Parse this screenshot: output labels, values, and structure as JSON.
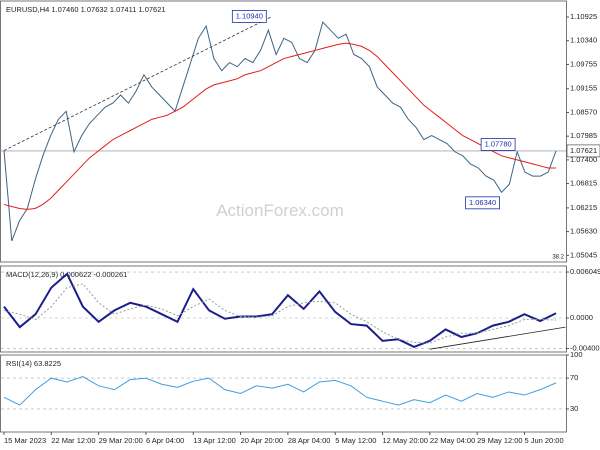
{
  "chart_data": [
    {
      "type": "line",
      "title": "EURUSD,H4  1.07460 1.07632 1.07411 1.07621",
      "watermark": "ActionForex.com",
      "note": "38.2",
      "current_price": 1.07621,
      "series": [
        {
          "name": "EURUSD",
          "color": "#3d6483",
          "values": [
            1.0763,
            1.054,
            1.059,
            1.062,
            1.069,
            1.075,
            1.08,
            1.084,
            1.086,
            1.076,
            1.08,
            1.083,
            1.085,
            1.087,
            1.088,
            1.09,
            1.088,
            1.091,
            1.095,
            1.092,
            1.09,
            1.088,
            1.086,
            1.092,
            1.098,
            1.104,
            1.107,
            1.099,
            1.096,
            1.098,
            1.097,
            1.099,
            1.098,
            1.101,
            1.106,
            1.1,
            1.104,
            1.103,
            1.099,
            1.098,
            1.101,
            1.108,
            1.106,
            1.104,
            1.105,
            1.1,
            1.099,
            1.097,
            1.092,
            1.09,
            1.088,
            1.087,
            1.084,
            1.082,
            1.079,
            1.08,
            1.079,
            1.078,
            1.076,
            1.075,
            1.073,
            1.072,
            1.07,
            1.069,
            1.066,
            1.068,
            1.076,
            1.071,
            1.07,
            1.07,
            1.071,
            1.0762
          ]
        },
        {
          "name": "MA",
          "color": "#e31d1d",
          "values": [
            1.063,
            1.0625,
            1.062,
            1.0618,
            1.062,
            1.063,
            1.0645,
            1.0665,
            1.0685,
            1.0705,
            1.0725,
            1.0745,
            1.076,
            1.0775,
            1.079,
            1.08,
            1.081,
            1.082,
            1.083,
            1.084,
            1.0845,
            1.085,
            1.086,
            1.087,
            1.0885,
            1.09,
            1.0915,
            1.0925,
            1.093,
            1.0935,
            1.094,
            1.095,
            1.0955,
            1.096,
            1.097,
            1.098,
            1.099,
            1.0995,
            1.1,
            1.1005,
            1.101,
            1.1015,
            1.102,
            1.1025,
            1.1028,
            1.1025,
            1.102,
            1.101,
            1.0995,
            1.0975,
            1.0955,
            1.0935,
            1.0915,
            1.0895,
            1.0875,
            1.086,
            1.0845,
            1.083,
            1.0815,
            1.08,
            1.079,
            1.078,
            1.077,
            1.076,
            1.075,
            1.0745,
            1.074,
            1.0735,
            1.073,
            1.0725,
            1.072,
            1.072
          ]
        }
      ],
      "annotations": [
        {
          "x": 34,
          "value": 1.1094,
          "label": "1.10940"
        },
        {
          "x": 66,
          "value": 1.0778,
          "label": "1.07780"
        },
        {
          "x": 64,
          "value": 1.0634,
          "label": "1.06340"
        }
      ],
      "trend_lines": [
        {
          "x": [
            0,
            34.5
          ],
          "values": [
            1.0763,
            1.1094
          ]
        }
      ],
      "ylim": [
        1.0488,
        1.1132
      ],
      "yticks": [
        1.10925,
        {
          "value": 1.1034,
          "label": "1.10340"
        },
        1.09755,
        1.09155,
        {
          "value": 1.0857,
          "label": "1.08570"
        },
        1.07985,
        {
          "value": 1.074,
          "label": "1.07400"
        },
        1.06815,
        1.06215,
        {
          "value": 1.0563,
          "label": "1.05630"
        },
        1.05045
      ]
    },
    {
      "type": "line",
      "title": "MACD(12,26,9) 0.000622 -0.000261",
      "series": [
        {
          "name": "MACD",
          "color": "#1b1f8a",
          "values": [
            0.0015,
            -0.0012,
            0.0005,
            0.004,
            0.0058,
            0.0015,
            -0.0005,
            0.001,
            0.002,
            0.0015,
            0.0005,
            -0.0005,
            0.0038,
            0.001,
            -0.0001,
            0.0002,
            0.0002,
            0.0005,
            0.003,
            0.0012,
            0.0035,
            0.0008,
            -0.0008,
            -0.001,
            -0.003,
            -0.0028,
            -0.0038,
            -0.003,
            -0.0015,
            -0.0025,
            -0.002,
            -0.001,
            -0.0005,
            0.0005,
            -0.0004,
            0.000622
          ]
        },
        {
          "name": "Signal",
          "color": "#9a9a9a",
          "values": [
            0.001,
            0.0005,
            -0.0002,
            0.0015,
            0.004,
            0.0045,
            0.002,
            0.0005,
            0.0012,
            0.0017,
            0.0012,
            0.0003,
            0.0015,
            0.0025,
            0.001,
            0.0002,
            0.0001,
            0.0003,
            0.0015,
            0.002,
            0.0022,
            0.002,
            0.0005,
            -0.0005,
            -0.0018,
            -0.0028,
            -0.0032,
            -0.0033,
            -0.0025,
            -0.002,
            -0.002,
            -0.0015,
            -0.001,
            -0.0002,
            -0.0002,
            -0.000261
          ]
        }
      ],
      "trend_lines": [
        {
          "x": [
            27,
            35.6
          ],
          "values": [
            -0.0041,
            -0.0012
          ]
        }
      ],
      "ylim": [
        -0.00447,
        0.00684
      ],
      "yticks": [
        0.006049,
        {
          "value": 0,
          "label": "0.0000"
        },
        -0.004005
      ]
    },
    {
      "type": "line",
      "title": "RSI(14) 63.8225",
      "series": [
        {
          "name": "RSI",
          "color": "#3d9ee0",
          "values": [
            45,
            35,
            55,
            70,
            65,
            72,
            60,
            55,
            68,
            70,
            62,
            58,
            66,
            70,
            55,
            50,
            60,
            57,
            62,
            52,
            65,
            67,
            60,
            45,
            40,
            35,
            42,
            38,
            48,
            40,
            50,
            45,
            52,
            48,
            55,
            63.8225
          ]
        }
      ],
      "ylim": [
        0,
        100
      ],
      "yticks": [
        100,
        70,
        30
      ],
      "xticks": [
        {
          "value": 0,
          "label": "15 Mar 2023"
        },
        {
          "value": 3,
          "label": "22 Mar 12:00"
        },
        {
          "value": 6,
          "label": "29 Mar 20:00"
        },
        {
          "value": 9,
          "label": "6 Apr 04:00"
        },
        {
          "value": 12,
          "label": "13 Apr 12:00"
        },
        {
          "value": 15,
          "label": "20 Apr 20:00"
        },
        {
          "value": 18,
          "label": "28 Apr 04:00"
        },
        {
          "value": 21,
          "label": "5 May 12:00"
        },
        {
          "value": 24,
          "label": "12 May 20:00"
        },
        {
          "value": 27,
          "label": "22 May 04:00"
        },
        {
          "value": 30,
          "label": "29 May 12:00"
        },
        {
          "value": 33,
          "label": "5 Jun 20:00"
        }
      ]
    }
  ]
}
